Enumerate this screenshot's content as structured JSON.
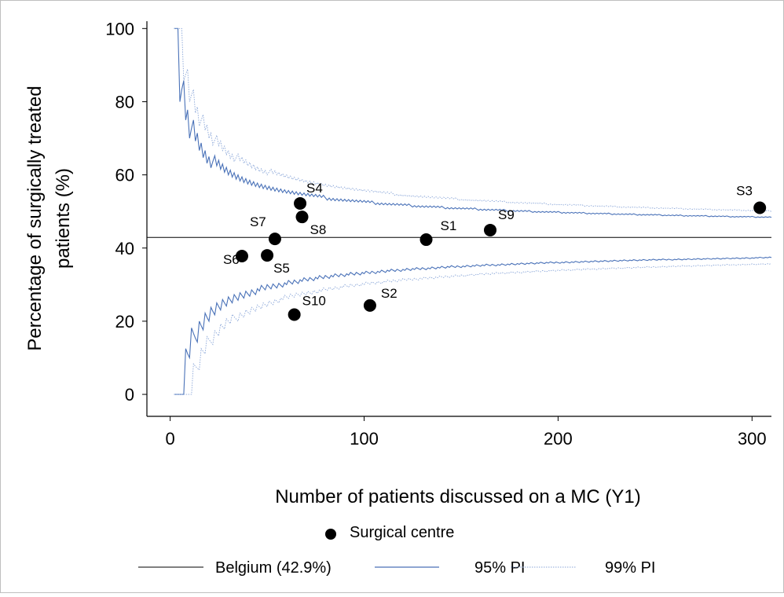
{
  "chart_data": {
    "type": "scatter",
    "title": "",
    "xlabel": "Number of patients discussed on a MC (Y1)",
    "ylabel": "Percentage of surgically treated patients (%)",
    "xlim": [
      -12,
      310
    ],
    "ylim": [
      -6,
      102
    ],
    "xticks": [
      0,
      100,
      200,
      300
    ],
    "yticks": [
      0,
      20,
      40,
      60,
      80,
      100
    ],
    "xtick_labels": [
      "0",
      "100",
      "200",
      "300"
    ],
    "ytick_labels": [
      "0",
      "20",
      "40",
      "60",
      "80",
      "100"
    ],
    "grid": false,
    "legend_position": "bottom",
    "reference_rate": 42.9,
    "series": [
      {
        "name": "Surgical centre",
        "kind": "points",
        "color": "#000000",
        "points": [
          {
            "label": "S1",
            "x": 132,
            "y": 42.3
          },
          {
            "label": "S2",
            "x": 103,
            "y": 24.3
          },
          {
            "label": "S3",
            "x": 304,
            "y": 51.0
          },
          {
            "label": "S4",
            "x": 67,
            "y": 52.2
          },
          {
            "label": "S5",
            "x": 50,
            "y": 38.0
          },
          {
            "label": "S6",
            "x": 37,
            "y": 37.8
          },
          {
            "label": "S7",
            "x": 54,
            "y": 42.5
          },
          {
            "label": "S8",
            "x": 68,
            "y": 48.5
          },
          {
            "label": "S9",
            "x": 165,
            "y": 44.9
          },
          {
            "label": "S10",
            "x": 64,
            "y": 21.8
          }
        ]
      },
      {
        "name": "Belgium (42.9%)",
        "kind": "hline",
        "color": "#000000",
        "value": 42.9
      },
      {
        "name": "95% PI",
        "kind": "funnel",
        "color": "#4a72b8",
        "z": 1.96
      },
      {
        "name": "99% PI",
        "kind": "funnel",
        "color": "#8aa6d8",
        "z": 2.576
      }
    ],
    "legend": {
      "row1": [
        "Surgical centre"
      ],
      "row2": [
        "Belgium (42.9%)",
        "95% PI",
        "99% PI"
      ]
    }
  }
}
